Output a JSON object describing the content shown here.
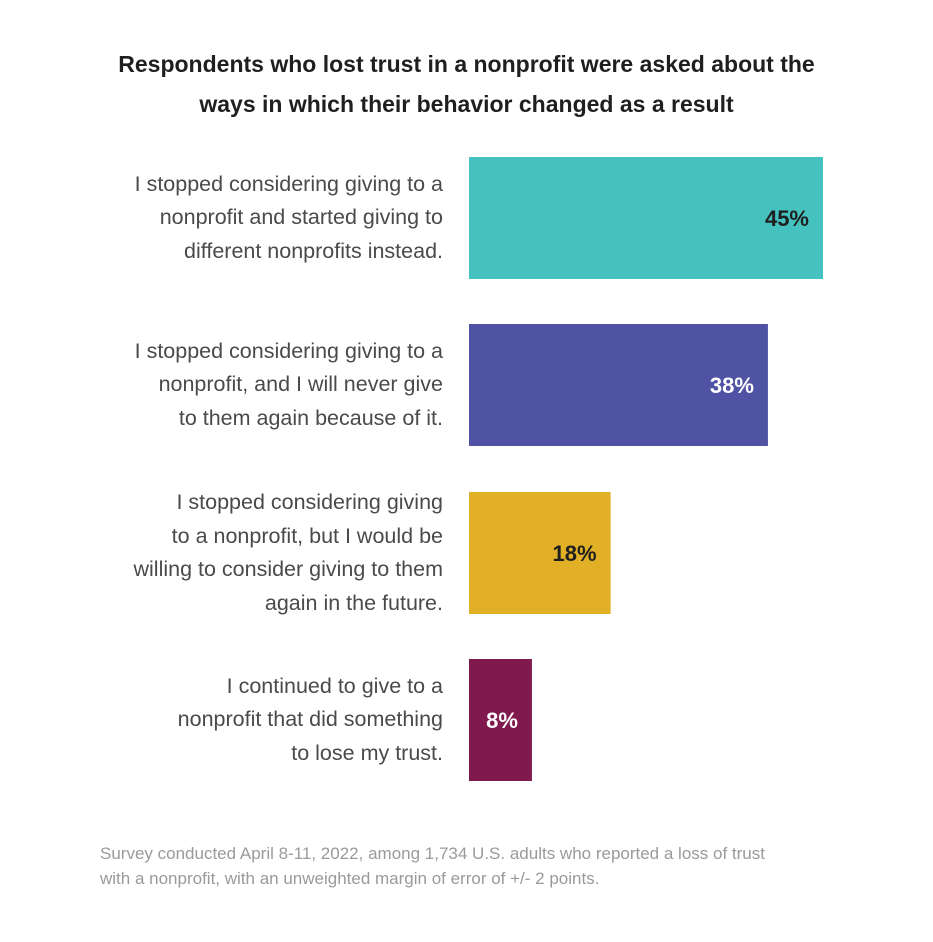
{
  "chart_data": {
    "type": "bar",
    "orientation": "horizontal",
    "title_lines": [
      "Respondents who lost trust in a nonprofit were asked about the",
      "ways in which their behavior changed as a result"
    ],
    "categories": [
      [
        "I stopped considering giving to a",
        "nonprofit and started giving to",
        "different nonprofits instead."
      ],
      [
        "I stopped considering giving to a",
        "nonprofit, and I will never give",
        "to them again because of it."
      ],
      [
        "I stopped considering giving",
        "to a nonprofit, but I would be",
        "willing to consider giving to them",
        "again in the future."
      ],
      [
        "I continued to give to a",
        "nonprofit that did something",
        "to lose my trust."
      ]
    ],
    "values": [
      45,
      38,
      18,
      8
    ],
    "data_labels": [
      "45%",
      "38%",
      "18%",
      "8%"
    ],
    "bar_colors": [
      "#45c1bf",
      "#5052a3",
      "#e1b027",
      "#80194d"
    ],
    "label_colors": [
      "#1f1f1f",
      "#ffffff",
      "#1f1f1f",
      "#ffffff"
    ],
    "xlim": [
      0,
      45
    ],
    "grid": false,
    "legend": "none",
    "footnote_lines": [
      "Survey conducted April 8-11, 2022, among 1,734 U.S. adults who reported a loss of trust",
      "with a nonprofit, with an unweighted margin of error of +/- 2 points."
    ]
  }
}
